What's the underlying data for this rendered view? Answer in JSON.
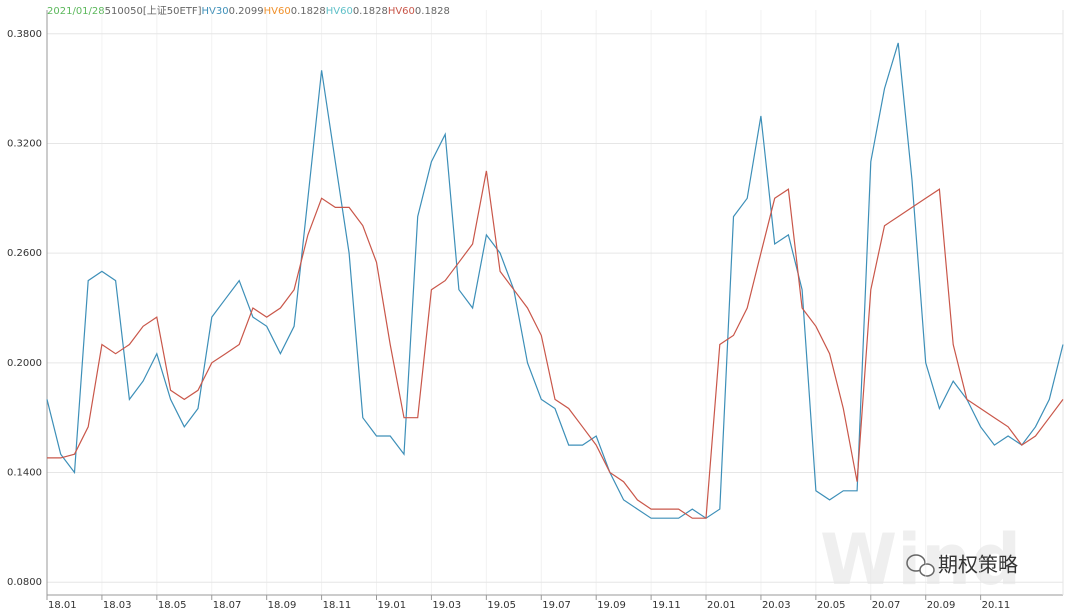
{
  "chart_data": {
    "type": "line",
    "header": {
      "date": "2021/01/28",
      "ticker": "510050[上证50ETF]"
    },
    "header_extra": [
      {
        "name": "HV60",
        "color": "#f0902a",
        "value": "0.1828"
      },
      {
        "name": "HV60",
        "color": "#5fc0c8",
        "value": "0.1828"
      }
    ],
    "watermark": "Wind",
    "brand": "期权策略",
    "categories": [
      "18.01",
      null,
      null,
      null,
      "18.03",
      null,
      null,
      null,
      "18.05",
      null,
      null,
      null,
      "18.07",
      null,
      null,
      null,
      "18.09",
      null,
      null,
      null,
      "18.11",
      null,
      null,
      null,
      "19.01",
      null,
      null,
      null,
      "19.03",
      null,
      null,
      null,
      "19.05",
      null,
      null,
      null,
      "19.07",
      null,
      null,
      null,
      "19.09",
      null,
      null,
      null,
      "19.11",
      null,
      null,
      null,
      "20.01",
      null,
      null,
      null,
      "20.03",
      null,
      null,
      null,
      "20.05",
      null,
      null,
      null,
      "20.07",
      null,
      null,
      null,
      "20.09",
      null,
      null,
      null,
      "20.11",
      null,
      null,
      null,
      null,
      null,
      null
    ],
    "series": [
      {
        "name": "HV30",
        "color": "#3d8fb8",
        "last": "0.2099",
        "values": [
          0.18,
          0.15,
          0.14,
          0.245,
          0.25,
          0.245,
          0.18,
          0.19,
          0.205,
          0.18,
          0.165,
          0.175,
          0.225,
          0.235,
          0.245,
          0.225,
          0.22,
          0.205,
          0.22,
          0.29,
          0.36,
          0.31,
          0.26,
          0.17,
          0.16,
          0.16,
          0.15,
          0.28,
          0.31,
          0.325,
          0.24,
          0.23,
          0.27,
          0.26,
          0.24,
          0.2,
          0.18,
          0.175,
          0.155,
          0.155,
          0.16,
          0.14,
          0.125,
          0.12,
          0.115,
          0.115,
          0.115,
          0.12,
          0.115,
          0.12,
          0.28,
          0.29,
          0.335,
          0.265,
          0.27,
          0.24,
          0.13,
          0.125,
          0.13,
          0.13,
          0.31,
          0.35,
          0.375,
          0.3,
          0.2,
          0.175,
          0.19,
          0.18,
          0.165,
          0.155,
          0.16,
          0.155,
          0.165,
          0.18,
          0.21
        ]
      },
      {
        "name": "HV60",
        "color": "#c9574a",
        "last": "0.1828",
        "values": [
          0.148,
          0.148,
          0.15,
          0.165,
          0.21,
          0.205,
          0.21,
          0.22,
          0.225,
          0.185,
          0.18,
          0.185,
          0.2,
          0.205,
          0.21,
          0.23,
          0.225,
          0.23,
          0.24,
          0.27,
          0.29,
          0.285,
          0.285,
          0.275,
          0.255,
          0.21,
          0.17,
          0.17,
          0.24,
          0.245,
          0.255,
          0.265,
          0.305,
          0.25,
          0.24,
          0.23,
          0.215,
          0.18,
          0.175,
          0.165,
          0.155,
          0.14,
          0.135,
          0.125,
          0.12,
          0.12,
          0.12,
          0.115,
          0.115,
          0.21,
          0.215,
          0.23,
          0.26,
          0.29,
          0.295,
          0.23,
          0.22,
          0.205,
          0.175,
          0.135,
          0.24,
          0.275,
          0.28,
          0.285,
          0.29,
          0.295,
          0.21,
          0.18,
          0.175,
          0.17,
          0.165,
          0.155,
          0.16,
          0.17,
          0.18
        ]
      }
    ],
    "ylim": [
      0.073,
      0.393
    ],
    "yticks": [
      {
        "value": 0.08,
        "label": "0.0800"
      },
      {
        "value": 0.14,
        "label": "0.1400"
      },
      {
        "value": 0.2,
        "label": "0.2000"
      },
      {
        "value": 0.26,
        "label": "0.2600"
      },
      {
        "value": 0.32,
        "label": "0.3200"
      },
      {
        "value": 0.38,
        "label": "0.3800"
      }
    ],
    "date_color": "#5cb85c",
    "grid": true
  }
}
